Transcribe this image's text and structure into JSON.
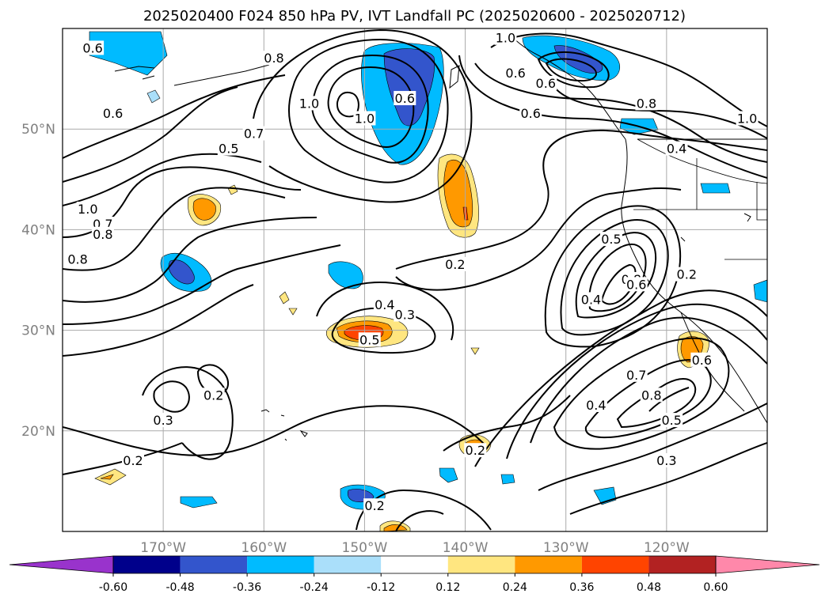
{
  "title": "2025020400 F024 850 hPa PV, IVT Landfall PC (2025020600 - 2025020712)",
  "map": {
    "lon_range": [
      -180,
      -110
    ],
    "lat_range": [
      10,
      60
    ],
    "lon_ticks": [
      {
        "value": -170,
        "label": "170°W"
      },
      {
        "value": -160,
        "label": "160°W"
      },
      {
        "value": -150,
        "label": "150°W"
      },
      {
        "value": -140,
        "label": "140°W"
      },
      {
        "value": -130,
        "label": "130°W"
      },
      {
        "value": -120,
        "label": "120°W"
      }
    ],
    "lat_ticks": [
      {
        "value": 20,
        "label": "20°N"
      },
      {
        "value": 30,
        "label": "30°N"
      },
      {
        "value": 40,
        "label": "40°N"
      },
      {
        "value": 50,
        "label": "50°N"
      }
    ],
    "grid": true,
    "contour_labels": [
      {
        "text": "1.0",
        "lon": -136,
        "lat": 59
      },
      {
        "text": "0.6",
        "lon": -135,
        "lat": 55.5
      },
      {
        "text": "0.6",
        "lon": -132,
        "lat": 54.5
      },
      {
        "text": "0.6",
        "lon": -133.5,
        "lat": 51.5
      },
      {
        "text": "0.8",
        "lon": -122,
        "lat": 52.5
      },
      {
        "text": "0.4",
        "lon": -119,
        "lat": 48
      },
      {
        "text": "1.0",
        "lon": -112,
        "lat": 51
      },
      {
        "text": "0.8",
        "lon": -159,
        "lat": 57
      },
      {
        "text": "1.0",
        "lon": -155.5,
        "lat": 52.5
      },
      {
        "text": "1.0",
        "lon": -150,
        "lat": 51
      },
      {
        "text": "0.6",
        "lon": -146,
        "lat": 53
      },
      {
        "text": "0.6",
        "lon": -177,
        "lat": 58
      },
      {
        "text": "0.6",
        "lon": -175,
        "lat": 51.5
      },
      {
        "text": "0.7",
        "lon": -161,
        "lat": 49.5
      },
      {
        "text": "0.5",
        "lon": -163.5,
        "lat": 48
      },
      {
        "text": "1.0",
        "lon": -177.5,
        "lat": 42
      },
      {
        "text": "0.7",
        "lon": -176,
        "lat": 40.5
      },
      {
        "text": "0.8",
        "lon": -176,
        "lat": 39.5
      },
      {
        "text": "0.8",
        "lon": -178.5,
        "lat": 37
      },
      {
        "text": "0.2",
        "lon": -141,
        "lat": 36.5
      },
      {
        "text": "0.4",
        "lon": -148,
        "lat": 32.5
      },
      {
        "text": "0.3",
        "lon": -146,
        "lat": 31.5
      },
      {
        "text": "0.5",
        "lon": -149.5,
        "lat": 29
      },
      {
        "text": "0.5",
        "lon": -125.5,
        "lat": 39
      },
      {
        "text": "0.4",
        "lon": -127.5,
        "lat": 33
      },
      {
        "text": "0.8",
        "lon": -123.5,
        "lat": 35
      },
      {
        "text": "0.6",
        "lon": -123,
        "lat": 34.5
      },
      {
        "text": "0.2",
        "lon": -118,
        "lat": 35.5
      },
      {
        "text": "0.7",
        "lon": -123,
        "lat": 25.5
      },
      {
        "text": "0.8",
        "lon": -121.5,
        "lat": 23.5
      },
      {
        "text": "0.5",
        "lon": -119.5,
        "lat": 21
      },
      {
        "text": "0.4",
        "lon": -127,
        "lat": 22.5
      },
      {
        "text": "0.3",
        "lon": -120,
        "lat": 17
      },
      {
        "text": "0.6",
        "lon": -116.5,
        "lat": 27
      },
      {
        "text": "0.2",
        "lon": -139,
        "lat": 18
      },
      {
        "text": "0.2",
        "lon": -165,
        "lat": 23.5
      },
      {
        "text": "0.3",
        "lon": -170,
        "lat": 21
      },
      {
        "text": "0.2",
        "lon": -173,
        "lat": 17
      },
      {
        "text": "0.2",
        "lon": -149,
        "lat": 12.5
      }
    ]
  },
  "colorbar": {
    "ticks": [
      "-0.60",
      "-0.48",
      "-0.36",
      "-0.24",
      "-0.12",
      "0.12",
      "0.24",
      "0.36",
      "0.48",
      "0.60"
    ],
    "low_extend_color": "#9933cc",
    "high_extend_color": "#ff88aa",
    "colors": [
      "#9933cc",
      "#00008b",
      "#3355cc",
      "#00bbff",
      "#aadffa",
      "#ffffff",
      "#ffe680",
      "#ff9900",
      "#ff4400",
      "#b22222",
      "#ff88aa"
    ]
  },
  "shading_colors": {
    "neg_light": "#aadffa",
    "neg_mid": "#00bbff",
    "neg_strong": "#3355cc",
    "pos_light": "#ffe680",
    "pos_mid": "#ff9900",
    "pos_strong": "#ff4400"
  }
}
